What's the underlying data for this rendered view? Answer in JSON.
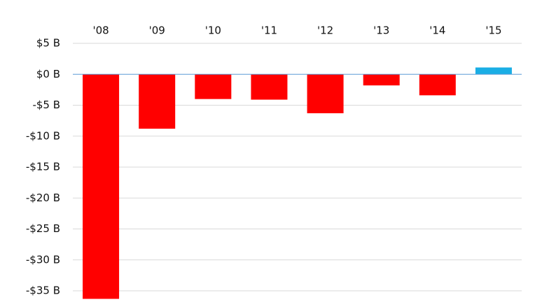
{
  "chart_data": {
    "type": "bar",
    "categories": [
      "'08",
      "'09",
      "'10",
      "'11",
      "'12",
      "'13",
      "'14",
      "'15"
    ],
    "values": [
      -36.3,
      -8.8,
      -4.0,
      -4.1,
      -6.3,
      -1.8,
      -3.4,
      1.1
    ],
    "colors": [
      "#ff0000",
      "#ff0000",
      "#ff0000",
      "#ff0000",
      "#ff0000",
      "#ff0000",
      "#ff0000",
      "#1aaee5"
    ],
    "ylim": [
      -35,
      5
    ],
    "yticks": [
      {
        "value": 5,
        "label": "$5 B"
      },
      {
        "value": 0,
        "label": "$0 B"
      },
      {
        "value": -5,
        "label": "-$5 B"
      },
      {
        "value": -10,
        "label": "-$10 B"
      },
      {
        "value": -15,
        "label": "-$15 B"
      },
      {
        "value": -20,
        "label": "-$20 B"
      },
      {
        "value": -25,
        "label": "-$25 B"
      },
      {
        "value": -30,
        "label": "-$30 B"
      },
      {
        "value": -35,
        "label": "-$35 B"
      }
    ],
    "grid": true
  }
}
